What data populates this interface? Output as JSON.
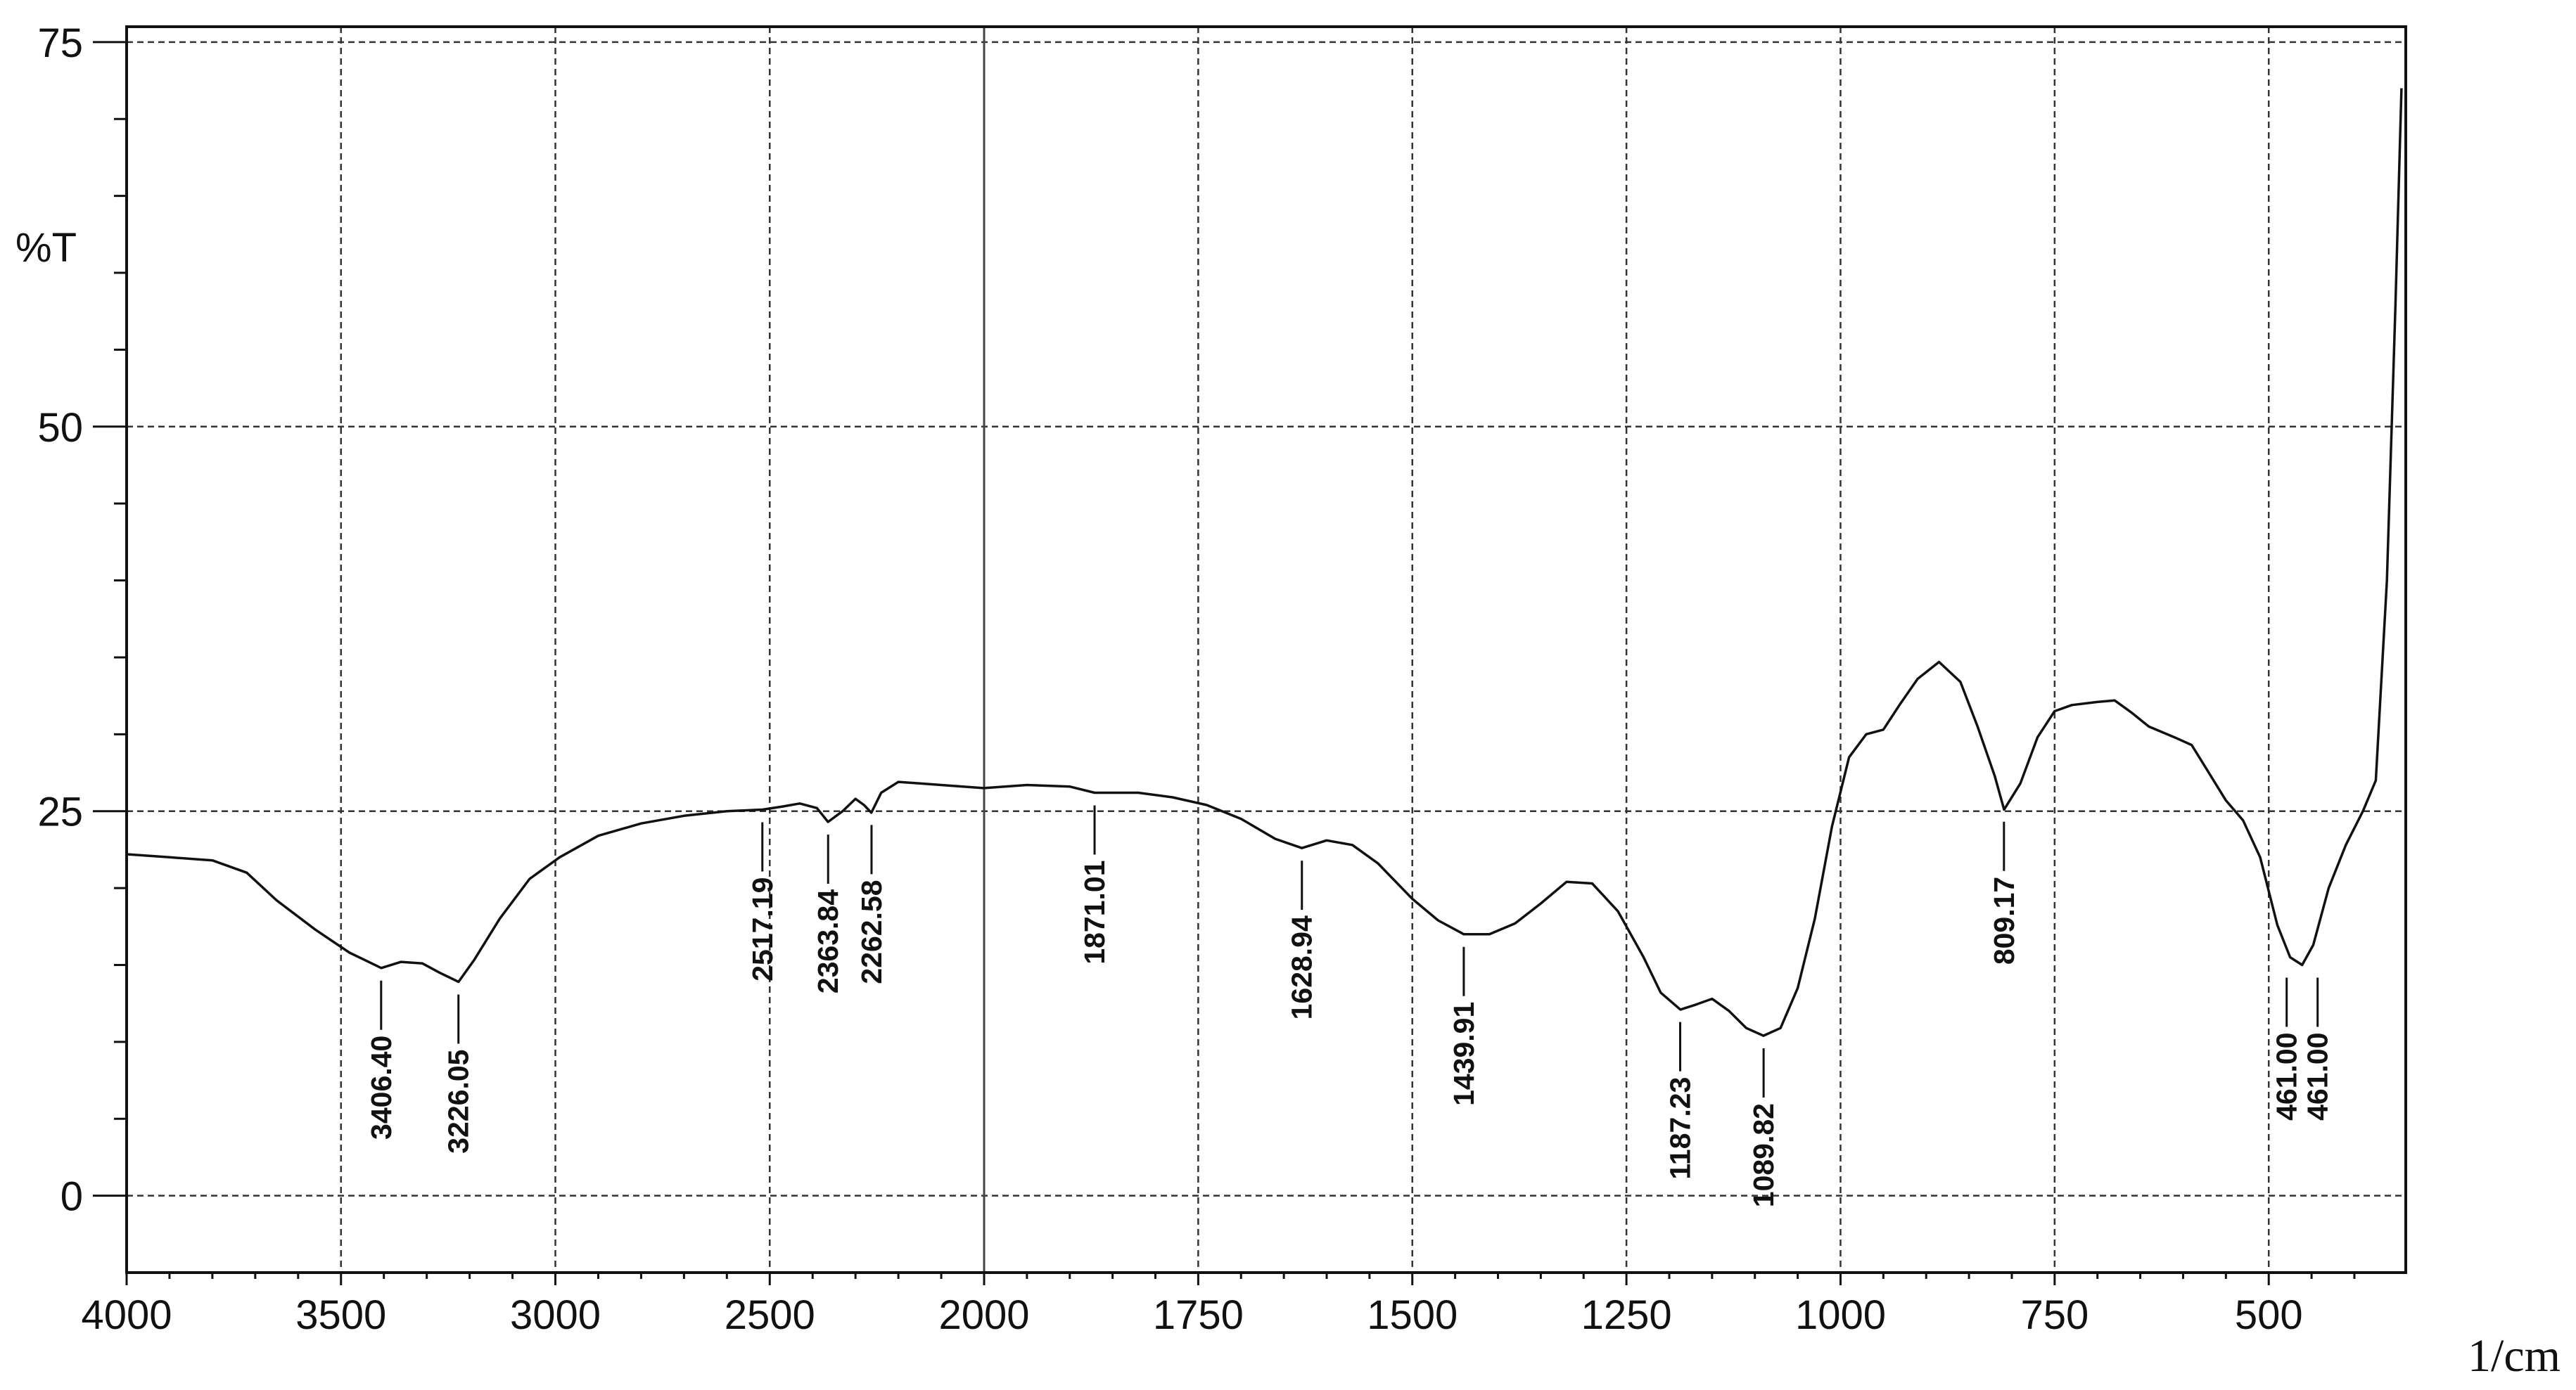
{
  "chart_data": {
    "type": "line",
    "title": "",
    "xlabel": "",
    "ylabel": "%T",
    "x_unit": "1/cm",
    "xlim": [
      4000,
      340
    ],
    "ylim": [
      -5,
      76
    ],
    "x_ticks": [
      4000,
      3500,
      3000,
      2500,
      2000,
      1750,
      1500,
      1250,
      1000,
      750,
      500
    ],
    "x_tick_labels": [
      "4000",
      "3500",
      "3000",
      "2500",
      "2000",
      "1750",
      "1500",
      "1250",
      "1000",
      "750",
      "500"
    ],
    "y_major_ticks": [
      0,
      25,
      50,
      75
    ],
    "y_major_labels": [
      "0",
      "25",
      "50",
      "75"
    ],
    "y_minor_ticks": [
      5,
      10,
      15,
      20,
      30,
      35,
      40,
      45,
      55,
      60,
      65,
      70
    ],
    "grid": true,
    "reference_line_x": 2000,
    "series": [
      {
        "x": [
          4000,
          3900,
          3800,
          3720,
          3650,
          3560,
          3480,
          3406,
          3360,
          3310,
          3270,
          3226,
          3190,
          3130,
          3060,
          2990,
          2900,
          2800,
          2700,
          2600,
          2517,
          2470,
          2430,
          2390,
          2364,
          2330,
          2300,
          2280,
          2263,
          2240,
          2200,
          2150,
          2100,
          2050,
          2000,
          1950,
          1900,
          1871,
          1820,
          1780,
          1740,
          1700,
          1660,
          1629,
          1600,
          1570,
          1540,
          1500,
          1470,
          1440,
          1410,
          1380,
          1350,
          1320,
          1290,
          1260,
          1230,
          1210,
          1187,
          1170,
          1150,
          1130,
          1110,
          1090,
          1070,
          1050,
          1030,
          1010,
          990,
          970,
          950,
          930,
          910,
          885,
          860,
          840,
          820,
          809,
          790,
          770,
          750,
          730,
          700,
          680,
          660,
          640,
          610,
          590,
          570,
          550,
          530,
          510,
          490,
          475,
          461,
          448,
          430,
          410,
          390,
          375,
          362,
          352,
          345
        ],
        "y": [
          22.2,
          22.0,
          21.8,
          21.0,
          19.2,
          17.3,
          15.8,
          14.8,
          15.2,
          15.1,
          14.5,
          13.9,
          15.3,
          18.0,
          20.6,
          22.0,
          23.4,
          24.2,
          24.7,
          25.0,
          25.1,
          25.3,
          25.5,
          25.2,
          24.3,
          25.0,
          25.8,
          25.4,
          24.9,
          26.2,
          26.9,
          26.8,
          26.7,
          26.6,
          26.5,
          26.7,
          26.6,
          26.2,
          26.2,
          25.9,
          25.4,
          24.5,
          23.2,
          22.6,
          23.1,
          22.8,
          21.6,
          19.3,
          17.9,
          17.0,
          17.0,
          17.7,
          19.0,
          20.4,
          20.3,
          18.5,
          15.5,
          13.2,
          12.1,
          12.4,
          12.8,
          12.0,
          10.9,
          10.4,
          10.9,
          13.5,
          18.0,
          24.0,
          28.5,
          30.0,
          30.3,
          32.0,
          33.6,
          34.7,
          33.4,
          30.5,
          27.3,
          25.1,
          26.8,
          29.8,
          31.5,
          31.9,
          32.1,
          32.2,
          31.4,
          30.5,
          29.8,
          29.3,
          27.5,
          25.7,
          24.4,
          22.0,
          17.6,
          15.5,
          15.0,
          16.3,
          20.0,
          22.8,
          25.0,
          27.0,
          40.0,
          58.0,
          72.0
        ]
      }
    ],
    "annotations": [
      {
        "x": 3406.4,
        "label": "3406.40"
      },
      {
        "x": 3226.05,
        "label": "3226.05"
      },
      {
        "x": 2517.19,
        "label": "2517.19"
      },
      {
        "x": 2363.84,
        "label": "2363.84"
      },
      {
        "x": 2262.58,
        "label": "2262.58"
      },
      {
        "x": 1871.01,
        "label": "1871.01"
      },
      {
        "x": 1628.94,
        "label": "1628.94"
      },
      {
        "x": 1439.91,
        "label": "1439.91"
      },
      {
        "x": 1187.23,
        "label": "1187.23"
      },
      {
        "x": 1089.82,
        "label": "1089.82"
      },
      {
        "x": 809.17,
        "label": "809.17"
      },
      {
        "x": 461.0,
        "label": "461.00"
      },
      {
        "x": 461.0,
        "label": "461.00"
      }
    ]
  }
}
